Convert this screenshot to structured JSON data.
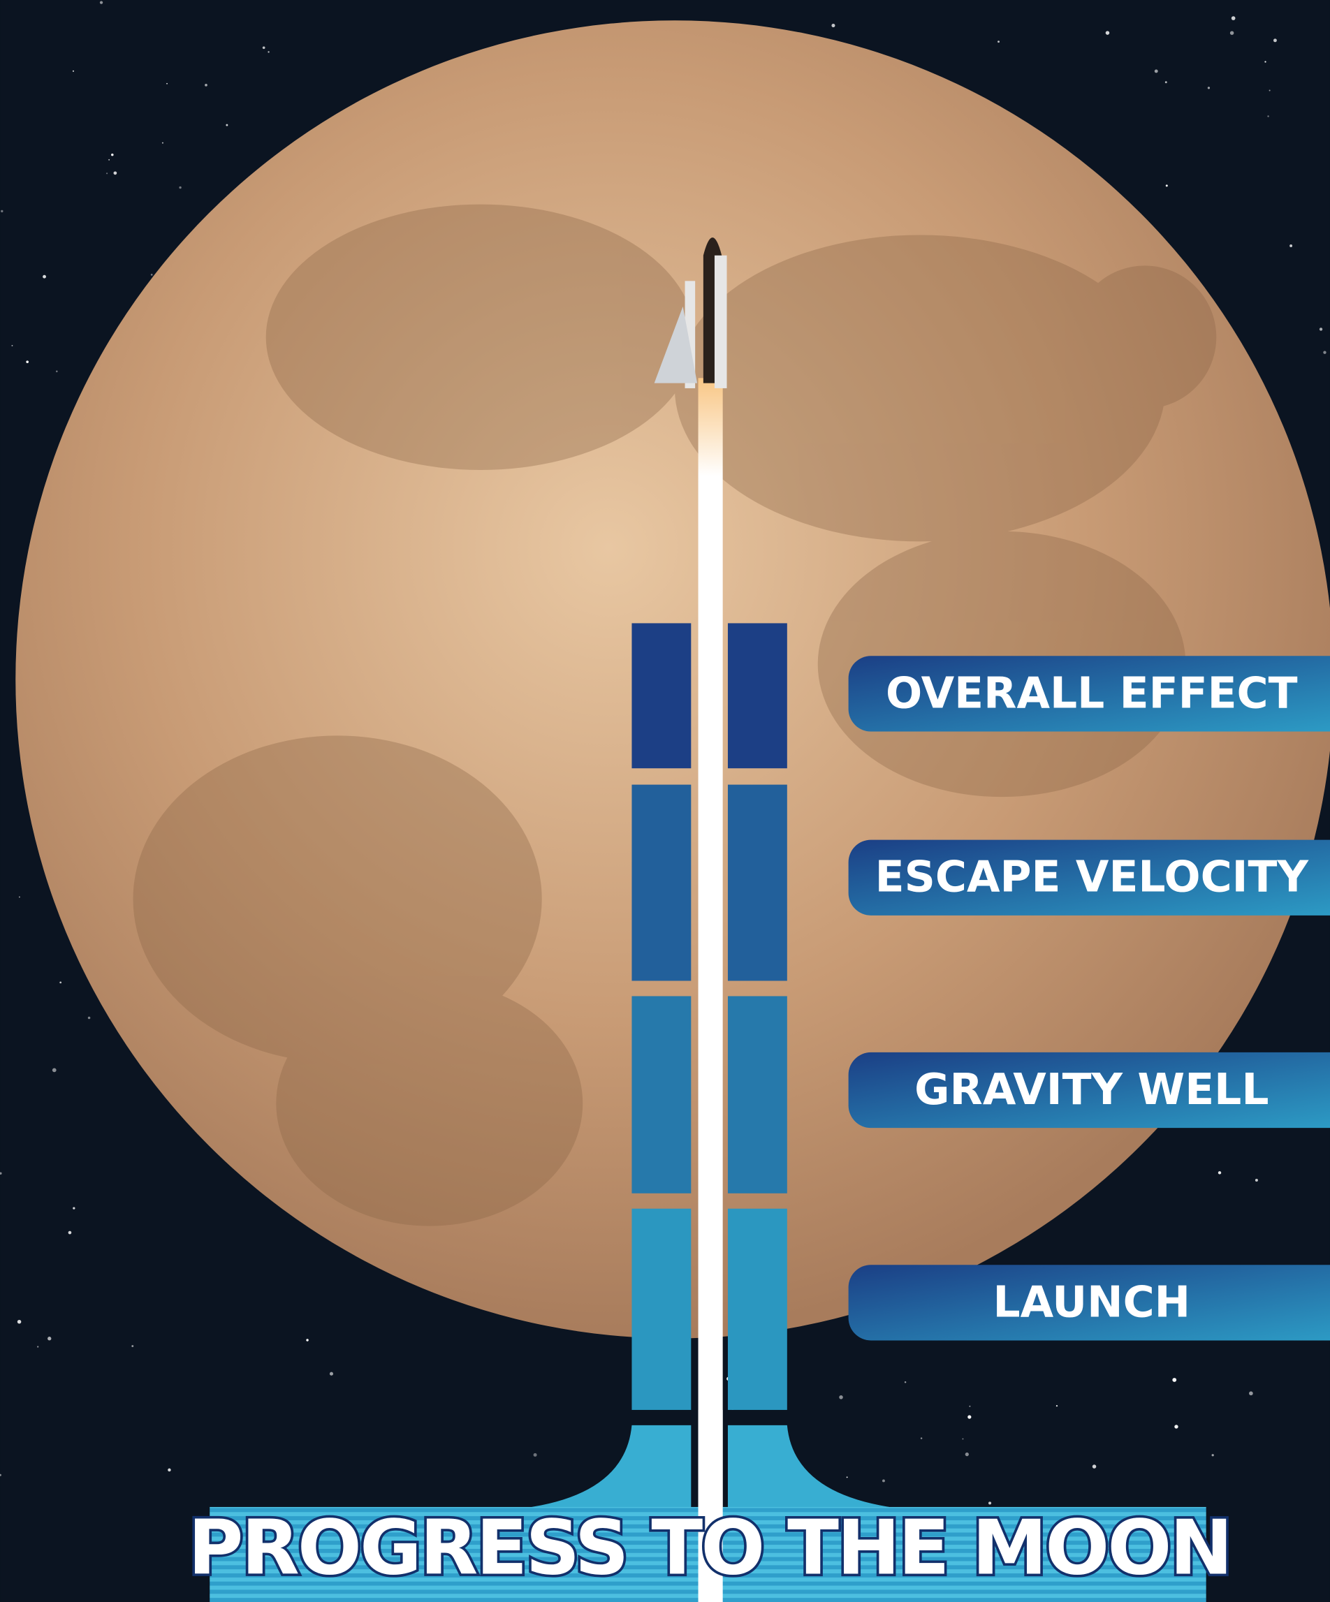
{
  "title": "PROGRESS TO THE MOON",
  "stages": [
    {
      "label": "OVERALL EFFECT"
    },
    {
      "label": "ESCAPE VELOCITY"
    },
    {
      "label": "GRAVITY WELL"
    },
    {
      "label": "LAUNCH"
    }
  ]
}
